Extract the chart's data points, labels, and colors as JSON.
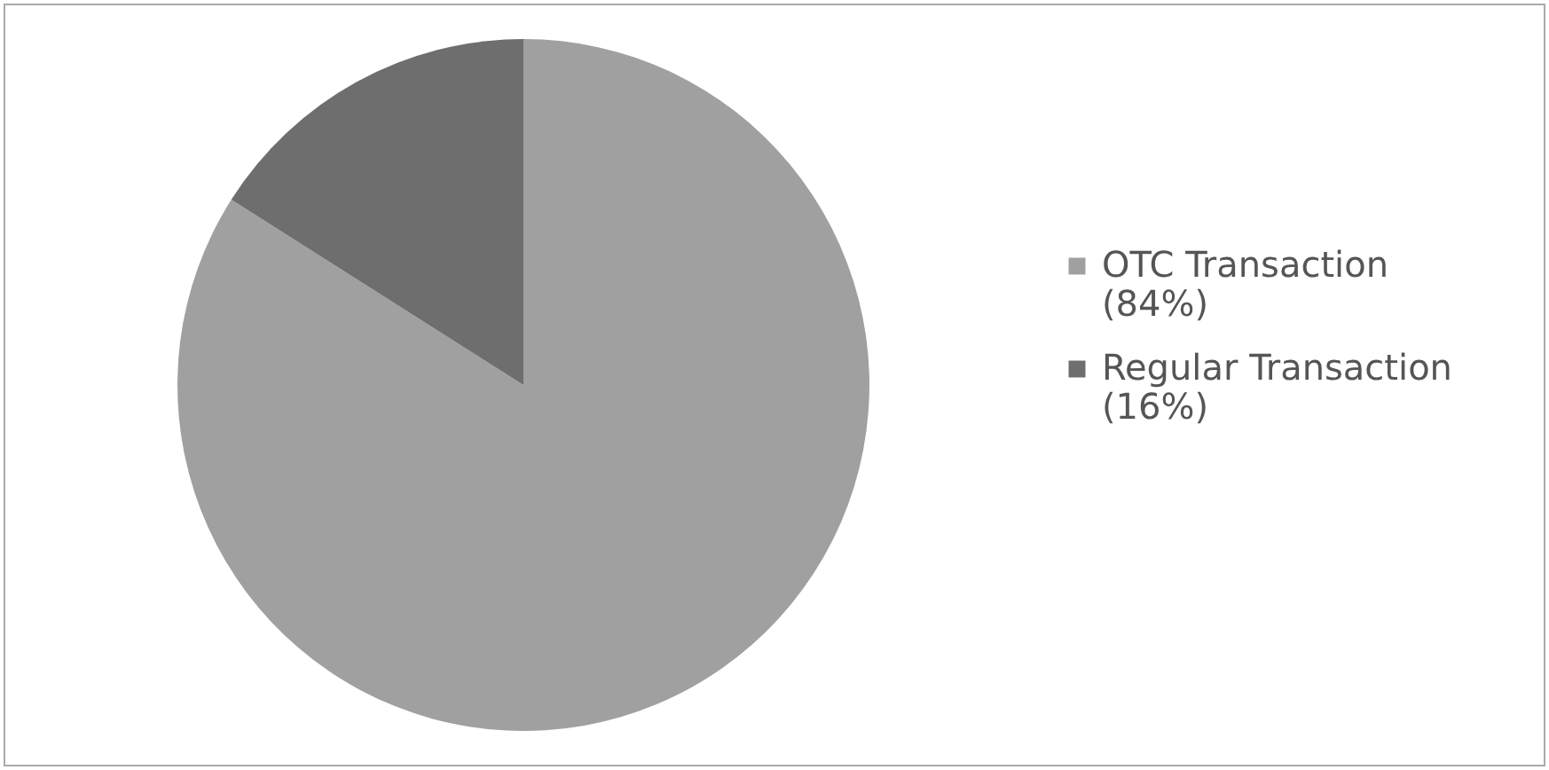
{
  "chart_data": {
    "type": "pie",
    "categories": [
      "OTC Transaction (84%)",
      "Regular Transaction (16%)"
    ],
    "values": [
      84,
      16
    ],
    "colors": [
      "#a0a0a0",
      "#6e6e6e"
    ],
    "legend": "right"
  }
}
